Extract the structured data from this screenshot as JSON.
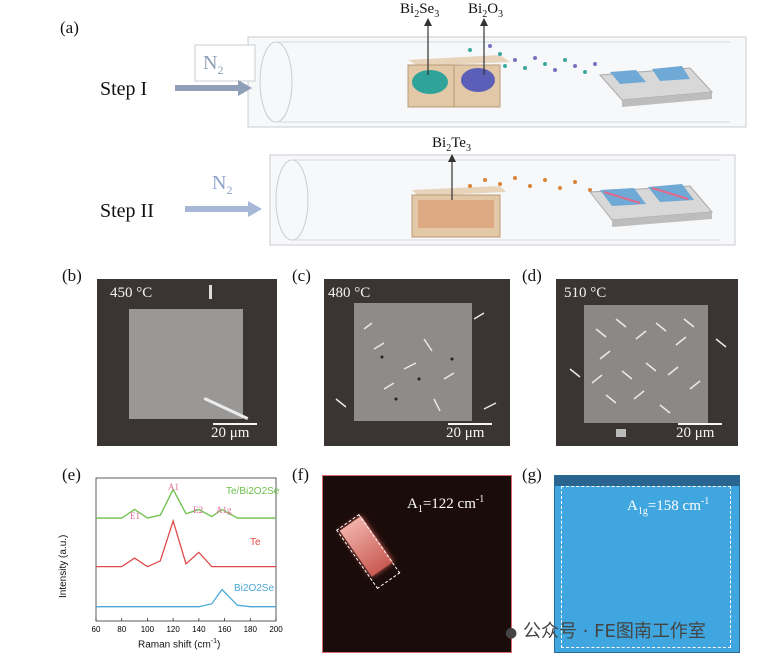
{
  "panel_a": {
    "label": "(a)",
    "step1": "Step I",
    "step2": "Step II",
    "gas": "N",
    "gas_sub": "2",
    "src1": {
      "base": "Bi",
      "s1": "2",
      "mid": "Se",
      "s2": "3"
    },
    "src2": {
      "base": "Bi",
      "s1": "2",
      "mid": "O",
      "s2": "3"
    },
    "src3": {
      "base": "Bi",
      "s1": "2",
      "mid": "Te",
      "s2": "3"
    }
  },
  "micro": [
    {
      "label": "(b)",
      "temp": "450 °C",
      "scale": "20 μm"
    },
    {
      "label": "(c)",
      "temp": "480 °C",
      "scale": "20 μm"
    },
    {
      "label": "(d)",
      "temp": "510 °C",
      "scale": "20 μm"
    }
  ],
  "panel_e": {
    "label": "(e)",
    "ylabel": "Intensity (a.u.)",
    "xlabel": "Raman shift (cm",
    "xlabel_sup": "-1",
    "xlabel_end": ")",
    "ticks": [
      "60",
      "80",
      "100",
      "120",
      "140",
      "160",
      "180",
      "200"
    ],
    "series_labels": [
      "Te/Bi2O2Se",
      "Te",
      "Bi2O2Se"
    ],
    "peaks": [
      "E1",
      "A1",
      "E2",
      "A1g"
    ],
    "colors": {
      "top": "#6cbf4a",
      "mid": "#e04a4a",
      "bot": "#4aa8d8",
      "peak": "#e06a9a"
    }
  },
  "chart_data": {
    "type": "line",
    "title": "",
    "xlabel": "Raman shift (cm-1)",
    "ylabel": "Intensity (a.u.)",
    "xlim": [
      60,
      200
    ],
    "series": [
      {
        "name": "Te/Bi2O2Se",
        "x": [
          60,
          80,
          90,
          100,
          110,
          120,
          130,
          140,
          150,
          158,
          170,
          180,
          200
        ],
        "values": [
          0.72,
          0.72,
          0.78,
          0.72,
          0.74,
          0.92,
          0.75,
          0.78,
          0.73,
          0.78,
          0.72,
          0.72,
          0.72
        ]
      },
      {
        "name": "Te",
        "x": [
          60,
          80,
          90,
          100,
          110,
          120,
          130,
          140,
          150,
          158,
          170,
          180,
          200
        ],
        "values": [
          0.38,
          0.38,
          0.44,
          0.38,
          0.42,
          0.7,
          0.4,
          0.48,
          0.38,
          0.38,
          0.38,
          0.38,
          0.38
        ]
      },
      {
        "name": "Bi2O2Se",
        "x": [
          60,
          80,
          90,
          100,
          110,
          120,
          130,
          140,
          150,
          158,
          170,
          180,
          200
        ],
        "values": [
          0.1,
          0.1,
          0.1,
          0.1,
          0.1,
          0.1,
          0.1,
          0.1,
          0.12,
          0.22,
          0.11,
          0.1,
          0.1
        ]
      }
    ],
    "annotations": [
      "E1",
      "A1",
      "E2",
      "A1g"
    ]
  },
  "panel_f": {
    "label": "(f)",
    "text": "A",
    "sub": "1",
    "value": "=122 cm",
    "sup": "-1"
  },
  "panel_g": {
    "label": "(g)",
    "text": "A",
    "sub": "1g",
    "value": "=158 cm",
    "sup": "-1"
  },
  "watermark": "公众号 · FE图南工作室"
}
